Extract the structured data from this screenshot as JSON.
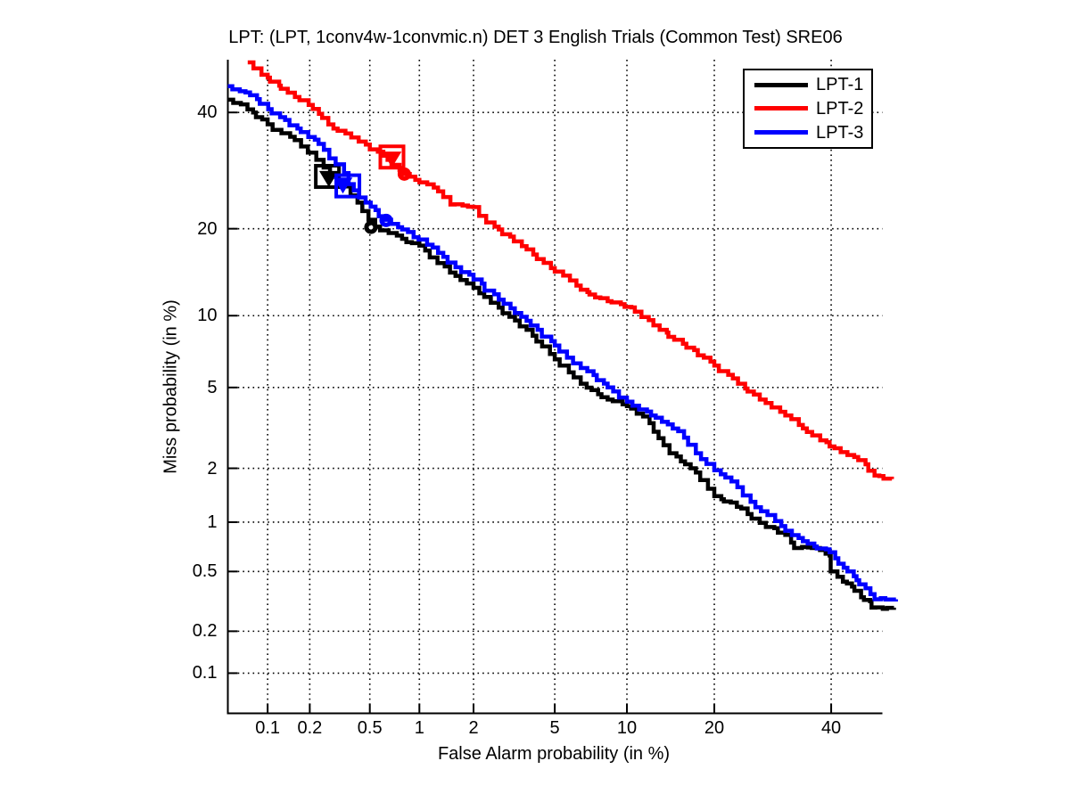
{
  "figure": {
    "title": "LPT: (LPT, 1conv4w-1convmic.n) DET 3 English Trials (Common Test) SRE06",
    "background_color": "#ffffff"
  },
  "axes": {
    "xlabel": "False Alarm probability (in %)",
    "ylabel": "Miss probability (in %)",
    "scale": "probit (normal deviate), log-style DET axes",
    "grid": "dotted",
    "x_range_percent": [
      0.05,
      50
    ],
    "y_range_percent": [
      0.05,
      50
    ],
    "x_ticks": [
      {
        "value": 0.1,
        "label": "0.1"
      },
      {
        "value": 0.2,
        "label": "0.2"
      },
      {
        "value": 0.5,
        "label": "0.5"
      },
      {
        "value": 1,
        "label": "1"
      },
      {
        "value": 2,
        "label": "2"
      },
      {
        "value": 5,
        "label": "5"
      },
      {
        "value": 10,
        "label": "10"
      },
      {
        "value": 20,
        "label": "20"
      },
      {
        "value": 40,
        "label": "40"
      }
    ],
    "y_ticks": [
      {
        "value": 40,
        "label": "40"
      },
      {
        "value": 20,
        "label": "20"
      },
      {
        "value": 10,
        "label": "10"
      },
      {
        "value": 5,
        "label": "5"
      },
      {
        "value": 2,
        "label": "2"
      },
      {
        "value": 1,
        "label": "1"
      },
      {
        "value": 0.5,
        "label": "0.5"
      },
      {
        "value": 0.2,
        "label": "0.2"
      },
      {
        "value": 0.1,
        "label": "0.1"
      }
    ]
  },
  "legend": {
    "position": "top-right",
    "entries": [
      {
        "label": "LPT-1",
        "color": "#000000"
      },
      {
        "label": "LPT-2",
        "color": "#ff0000"
      },
      {
        "label": "LPT-3",
        "color": "#0000ff"
      }
    ]
  },
  "chart_data": {
    "type": "line",
    "title": "LPT: (LPT, 1conv4w-1convmic.n) DET 3 English Trials (Common Test) SRE06",
    "xlabel": "False Alarm probability (in %)",
    "ylabel": "Miss probability (in %)",
    "x_units": "false alarm probability in percent",
    "y_units": "miss probability in percent",
    "series": [
      {
        "name": "LPT-1",
        "color": "#000000",
        "points": [
          [
            0.05,
            42.5
          ],
          [
            0.063,
            41.6
          ],
          [
            0.078,
            40.0
          ],
          [
            0.1,
            37.7
          ],
          [
            0.126,
            36.0
          ],
          [
            0.157,
            34.7
          ],
          [
            0.194,
            32.4
          ],
          [
            0.222,
            31.1
          ],
          [
            0.275,
            28.6
          ],
          [
            0.34,
            26.5
          ],
          [
            0.417,
            23.9
          ],
          [
            0.49,
            21.3
          ],
          [
            0.54,
            20.3
          ],
          [
            0.655,
            19.4
          ],
          [
            0.79,
            18.6
          ],
          [
            1.0,
            17.7
          ],
          [
            1.27,
            15.5
          ],
          [
            1.6,
            14.0
          ],
          [
            2.0,
            12.7
          ],
          [
            2.46,
            11.2
          ],
          [
            3.05,
            9.9
          ],
          [
            3.7,
            8.8
          ],
          [
            5.0,
            6.65
          ],
          [
            6.5,
            5.2
          ],
          [
            8.4,
            4.4
          ],
          [
            10.0,
            4.1
          ],
          [
            11.5,
            3.66
          ],
          [
            14.3,
            2.4
          ],
          [
            17.5,
            1.9
          ],
          [
            20.0,
            1.41
          ],
          [
            24.0,
            1.2
          ],
          [
            27.0,
            0.99
          ],
          [
            31.4,
            0.84
          ],
          [
            33.0,
            0.7
          ],
          [
            36.3,
            0.7
          ],
          [
            39.7,
            0.63
          ],
          [
            39.9,
            0.5
          ],
          [
            42.3,
            0.43
          ],
          [
            44.1,
            0.4
          ],
          [
            45.9,
            0.34
          ],
          [
            47.7,
            0.32
          ],
          [
            48.0,
            0.29
          ],
          [
            52.5,
            0.29
          ]
        ],
        "markers": {
          "square": [
            0.264,
            28.2
          ],
          "triangle": [
            0.27,
            27.9
          ],
          "circle": [
            0.508,
            20.2
          ]
        }
      },
      {
        "name": "LPT-2",
        "color": "#ff0000",
        "points": [
          [
            0.071,
            50.0
          ],
          [
            0.09,
            47.5
          ],
          [
            0.14,
            43.9
          ],
          [
            0.21,
            40.7
          ],
          [
            0.29,
            36.9
          ],
          [
            0.38,
            35.2
          ],
          [
            0.5,
            33.0
          ],
          [
            0.645,
            31.1
          ],
          [
            0.81,
            28.6
          ],
          [
            1.0,
            27.2
          ],
          [
            1.28,
            25.7
          ],
          [
            1.5,
            23.6
          ],
          [
            2.0,
            23.2
          ],
          [
            2.33,
            20.9
          ],
          [
            2.7,
            19.9
          ],
          [
            3.7,
            17.2
          ],
          [
            5.0,
            14.5
          ],
          [
            6.5,
            12.5
          ],
          [
            8.4,
            11.35
          ],
          [
            10.4,
            10.75
          ],
          [
            13.2,
            8.8
          ],
          [
            16.3,
            7.45
          ],
          [
            20.0,
            6.25
          ],
          [
            23.5,
            5.2
          ],
          [
            27.0,
            4.4
          ],
          [
            31.4,
            3.7
          ],
          [
            34.6,
            3.2
          ],
          [
            39.7,
            2.6
          ],
          [
            43.2,
            2.35
          ],
          [
            46.8,
            2.1
          ],
          [
            48.6,
            1.83
          ],
          [
            50.4,
            1.76
          ],
          [
            52.1,
            1.75
          ]
        ],
        "markers": {
          "square": [
            0.686,
            31.6
          ],
          "triangle": [
            0.686,
            31.3
          ],
          "circle": [
            0.815,
            28.6
          ]
        }
      },
      {
        "name": "LPT-3",
        "color": "#0000ff",
        "points": [
          [
            0.05,
            45.2
          ],
          [
            0.074,
            43.4
          ],
          [
            0.107,
            39.8
          ],
          [
            0.164,
            36.9
          ],
          [
            0.23,
            34.0
          ],
          [
            0.3,
            30.3
          ],
          [
            0.365,
            26.9
          ],
          [
            0.47,
            23.9
          ],
          [
            0.63,
            21.3
          ],
          [
            0.79,
            19.9
          ],
          [
            0.99,
            18.5
          ],
          [
            1.28,
            16.75
          ],
          [
            1.6,
            15.0
          ],
          [
            2.0,
            13.6
          ],
          [
            2.7,
            11.5
          ],
          [
            3.7,
            9.55
          ],
          [
            5.0,
            7.6
          ],
          [
            6.5,
            6.1
          ],
          [
            8.4,
            5.0
          ],
          [
            10.0,
            4.3
          ],
          [
            12.3,
            3.7
          ],
          [
            15.3,
            3.1
          ],
          [
            17.5,
            2.4
          ],
          [
            20.0,
            1.95
          ],
          [
            22.5,
            1.7
          ],
          [
            25.5,
            1.31
          ],
          [
            28.3,
            1.1
          ],
          [
            31.4,
            0.89
          ],
          [
            34.6,
            0.77
          ],
          [
            35.5,
            0.745
          ],
          [
            39.7,
            0.66
          ],
          [
            41.4,
            0.56
          ],
          [
            43.2,
            0.5
          ],
          [
            45.0,
            0.44
          ],
          [
            46.8,
            0.39
          ],
          [
            48.6,
            0.33
          ],
          [
            52.9,
            0.33
          ]
        ],
        "markers": {
          "square": [
            0.361,
            26.6
          ],
          "triangle": [
            0.335,
            26.8
          ],
          "circle": [
            0.632,
            21.2
          ]
        }
      }
    ]
  }
}
